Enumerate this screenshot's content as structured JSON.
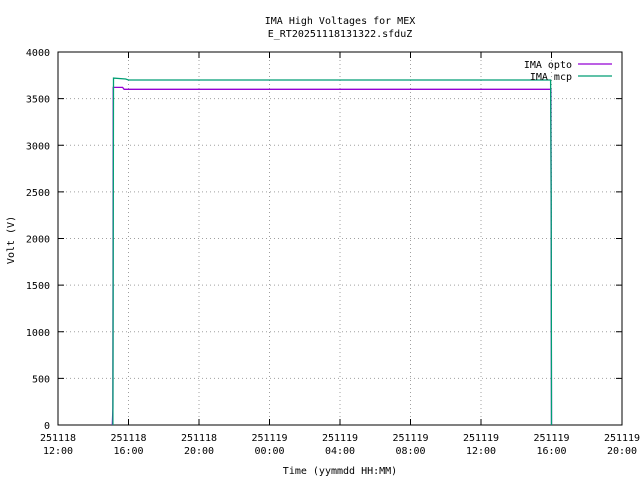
{
  "chart_data": {
    "type": "line",
    "title": "IMA High Voltages for MEX",
    "subtitle": "E_RT20251118131322.sfduZ",
    "x_label": "Time (yymmdd HH:MM)",
    "y_label": "Volt (V)",
    "xlim": [
      "251118 12:00",
      "251119 20:00"
    ],
    "xticks": [
      "251118 12:00",
      "251118 16:00",
      "251118 20:00",
      "251119 00:00",
      "251119 04:00",
      "251119 08:00",
      "251119 12:00",
      "251119 16:00",
      "251119 20:00"
    ],
    "ylim": [
      0,
      4000
    ],
    "yticks": [
      0,
      500,
      1000,
      1500,
      2000,
      2500,
      3000,
      3500,
      4000
    ],
    "grid": true,
    "legend": "top-right",
    "series": [
      {
        "name": "IMA opto",
        "color": "#9400d3",
        "x": [
          "251118 15:05",
          "251118 15:07",
          "251118 15:08",
          "251118 15:40",
          "251118 15:45",
          "251119 15:58",
          "251119 16:00"
        ],
        "values": [
          0,
          180,
          3620,
          3620,
          3600,
          3600,
          0
        ]
      },
      {
        "name": "IMA mcp",
        "color": "#009e73",
        "x": [
          "251118 15:07",
          "251118 15:09",
          "251118 15:50",
          "251118 16:00",
          "251119 15:57",
          "251119 15:59",
          "251119 16:00"
        ],
        "values": [
          0,
          3720,
          3710,
          3700,
          3700,
          2400,
          0
        ]
      }
    ]
  }
}
